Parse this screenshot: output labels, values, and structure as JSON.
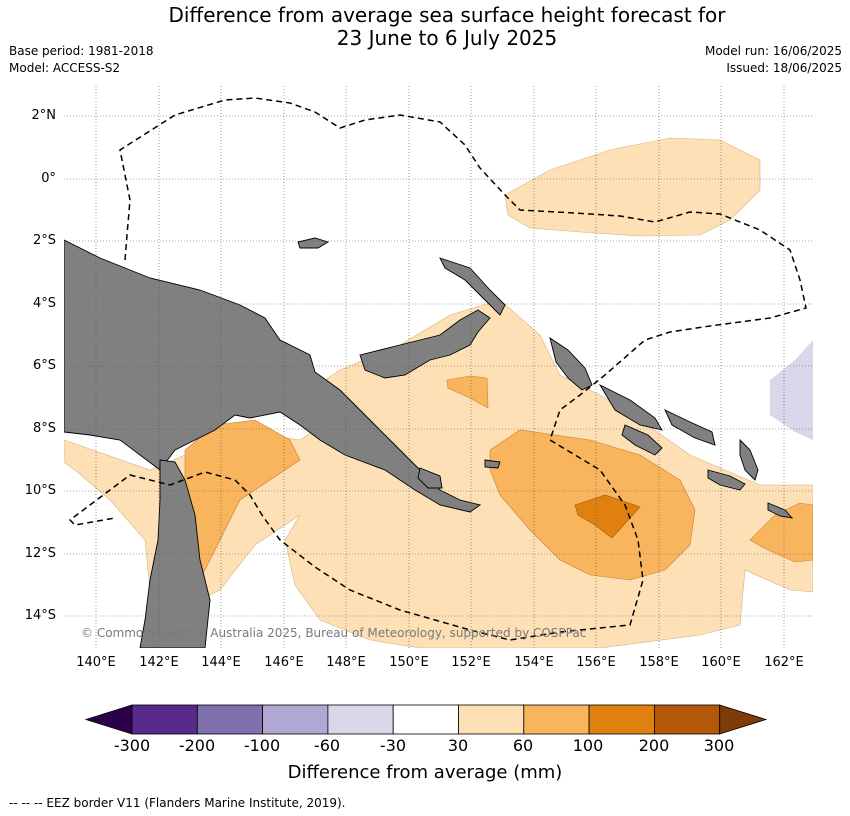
{
  "header": {
    "title_line1": "Difference from average sea surface height forecast for",
    "title_line2": "23 June to 6 July 2025",
    "base_period": "Base period: 1981-2018",
    "model": "Model: ACCESS-S2",
    "model_run": "Model run: 16/06/2025",
    "issued": "Issued: 18/06/2025"
  },
  "map": {
    "lat_labels": [
      "2°N",
      "0°",
      "2°S",
      "4°S",
      "6°S",
      "8°S",
      "10°S",
      "12°S",
      "14°S"
    ],
    "lon_labels": [
      "140°E",
      "142°E",
      "144°E",
      "146°E",
      "148°E",
      "150°E",
      "152°E",
      "154°E",
      "156°E",
      "158°E",
      "160°E",
      "162°E"
    ],
    "copyright": "© Commonwealth of Australia 2025, Bureau of Meteorology, supported by COSPPac",
    "colors": {
      "land": "#808080",
      "ocean": "#ffffff",
      "band_30_60": "#fde0b5",
      "band_60_100": "#f8b55e",
      "band_100_200": "#e0800f",
      "band_neg_60_30": "#d8d8ea"
    }
  },
  "colorbar": {
    "ticks": [
      "-300",
      "-200",
      "-100",
      "-60",
      "-30",
      "30",
      "60",
      "100",
      "200",
      "300"
    ],
    "colors": [
      "#5a2a8a",
      "#8070ae",
      "#b0a8d2",
      "#d8d8ea",
      "#ffffff",
      "#fde0b5",
      "#f8b55e",
      "#e0800f",
      "#b35806"
    ],
    "under_color": "#2d004b",
    "over_color": "#7f3b08",
    "label": "Difference from average (mm)"
  },
  "footnote": "-- -- -- EEZ border V11 (Flanders Marine Institute, 2019)."
}
